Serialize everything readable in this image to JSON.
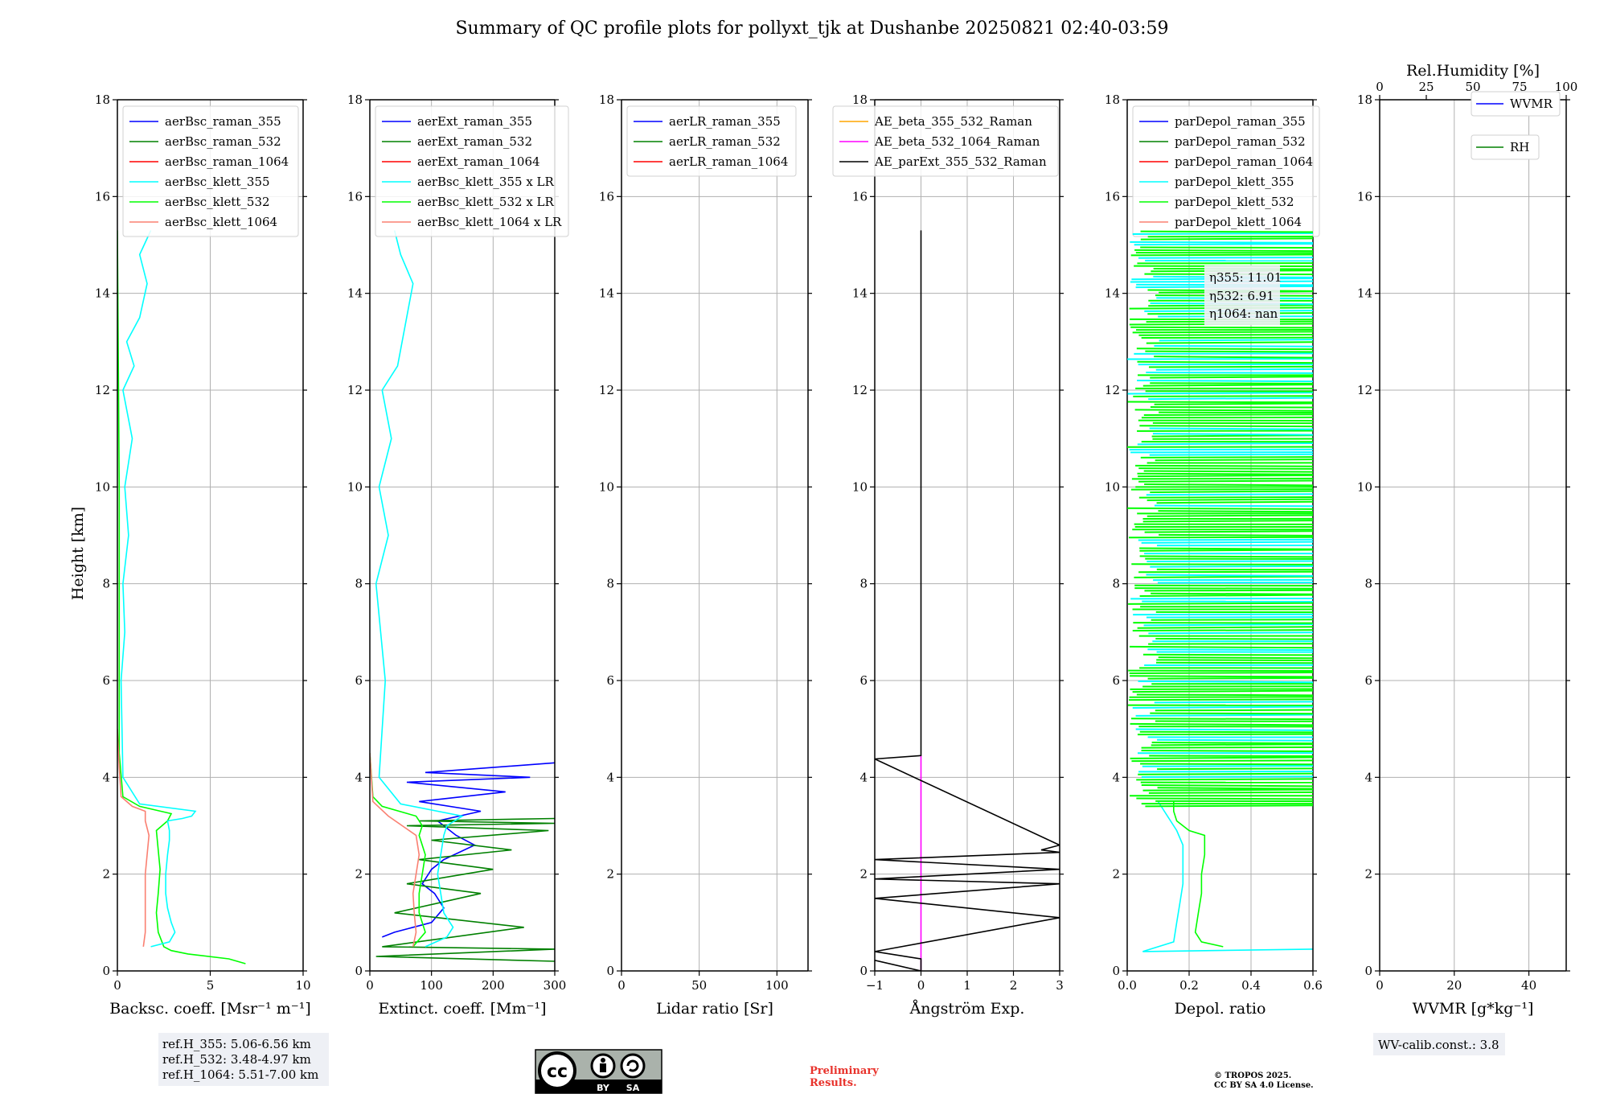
{
  "title": "Summary of QC profile plots for pollyxt_tjk at Dushanbe 20250821 02:40-03:59",
  "ylabel": "Height [km]",
  "yticks": [
    "0",
    "2",
    "4",
    "6",
    "8",
    "10",
    "12",
    "14",
    "16",
    "18"
  ],
  "colors": {
    "raman355": "#0000ff",
    "raman532": "#008000",
    "raman1064": "#ff0000",
    "klett355": "#00ffff",
    "klett532": "#00ff00",
    "klett1064": "#fa8072",
    "ae1": "#ffa500",
    "ae2": "#ff00ff",
    "ae3": "#000000"
  },
  "panels": [
    {
      "xlabel": "Backsc. coeff. [Msr⁻¹ m⁻¹]",
      "xticks": [
        "0",
        "5",
        "10"
      ],
      "legend": [
        "aerBsc_raman_355",
        "aerBsc_raman_532",
        "aerBsc_raman_1064",
        "aerBsc_klett_355",
        "aerBsc_klett_532",
        "aerBsc_klett_1064"
      ]
    },
    {
      "xlabel": "Extinct. coeff. [Mm⁻¹]",
      "xticks": [
        "0",
        "100",
        "200",
        "300"
      ],
      "legend": [
        "aerExt_raman_355",
        "aerExt_raman_532",
        "aerExt_raman_1064",
        "aerBsc_klett_355 x LR",
        "aerBsc_klett_532 x LR",
        "aerBsc_klett_1064 x LR"
      ]
    },
    {
      "xlabel": "Lidar ratio [Sr]",
      "xticks": [
        "0",
        "50",
        "100"
      ],
      "legend": [
        "aerLR_raman_355",
        "aerLR_raman_532",
        "aerLR_raman_1064"
      ]
    },
    {
      "xlabel": "Ångström Exp.",
      "xticks": [
        "−1",
        "0",
        "1",
        "2",
        "3"
      ],
      "legend": [
        "AE_beta_355_532_Raman",
        "AE_beta_532_1064_Raman",
        "AE_parExt_355_532_Raman"
      ]
    },
    {
      "xlabel": "Depol. ratio",
      "xticks": [
        "0.0",
        "0.2",
        "0.4",
        "0.6"
      ],
      "legend": [
        "parDepol_raman_355",
        "parDepol_raman_532",
        "parDepol_raman_1064",
        "parDepol_klett_355",
        "parDepol_klett_532",
        "parDepol_klett_1064"
      ]
    },
    {
      "xlabel": "WVMR [g*kg⁻¹]",
      "xticks": [
        "0",
        "20",
        "40"
      ],
      "top_label": "Rel.Humidity [%]",
      "top_ticks": [
        "0",
        "25",
        "50",
        "75",
        "100"
      ],
      "legend": [
        "WVMR",
        "RH"
      ]
    }
  ],
  "eta_box": [
    "η355: 11.01",
    "η532: 6.91",
    "η1064: nan"
  ],
  "ref_box": [
    "ref.H_355: 5.06-6.56 km",
    "ref.H_532: 3.48-4.97 km",
    "ref.H_1064: 5.51-7.00 km"
  ],
  "wv_calib": "WV-calib.const.: 3.8",
  "preliminary": [
    "Preliminary",
    "Results."
  ],
  "copyright": [
    "© TROPOS 2025.",
    "CC BY SA 4.0 License."
  ],
  "cc_badge": {
    "by": "BY",
    "sa": "SA"
  },
  "chart_data": [
    {
      "type": "line",
      "xlabel": "Backsc. coeff. [Msr⁻¹ m⁻¹]",
      "ylabel": "Height [km]",
      "xlim": [
        0,
        10
      ],
      "ylim": [
        0,
        18
      ],
      "series": [
        {
          "name": "aerBsc_klett_532",
          "x": [
            6.9,
            6.0,
            3.8,
            2.9,
            2.5,
            2.2,
            2.1,
            2.2,
            2.3,
            2.2,
            2.1,
            2.7,
            2.9,
            1.2,
            0.3,
            0.1,
            0.1,
            0.0
          ],
          "y": [
            0.15,
            0.25,
            0.35,
            0.42,
            0.5,
            0.8,
            1.2,
            1.6,
            2.1,
            2.5,
            2.9,
            3.1,
            3.25,
            3.4,
            3.6,
            4.5,
            10,
            15.3
          ]
        },
        {
          "name": "aerBsc_klett_355",
          "x": [
            1.8,
            2.8,
            3.1,
            2.9,
            2.7,
            2.6,
            2.6,
            2.7,
            2.8,
            2.8,
            2.7,
            3.5,
            4.0,
            4.2,
            1.2,
            0.3,
            0.2,
            0.4,
            0.3,
            0.6,
            0.4,
            0.8,
            0.3,
            0.9,
            0.5,
            1.2,
            1.6,
            1.2,
            1.8
          ],
          "y": [
            0.5,
            0.6,
            0.8,
            1.0,
            1.3,
            1.6,
            2.0,
            2.4,
            2.7,
            2.9,
            3.1,
            3.15,
            3.2,
            3.3,
            3.45,
            4.0,
            6,
            7,
            8,
            9,
            10,
            11,
            12,
            12.5,
            13,
            13.5,
            14.2,
            14.8,
            15.3
          ]
        },
        {
          "name": "aerBsc_klett_1064",
          "x": [
            1.4,
            1.5,
            1.5,
            1.5,
            1.5,
            1.6,
            1.7,
            1.5,
            1.5,
            0.8,
            0.2,
            0.1,
            0.0
          ],
          "y": [
            0.5,
            0.8,
            1.2,
            1.6,
            2.0,
            2.4,
            2.8,
            3.1,
            3.3,
            3.4,
            3.6,
            4.2,
            5.0
          ]
        }
      ]
    },
    {
      "type": "line",
      "xlabel": "Extinct. coeff. [Mm⁻¹]",
      "ylabel": "Height [km]",
      "xlim": [
        0,
        300
      ],
      "ylim": [
        0,
        18
      ],
      "series": [
        {
          "name": "aerExt_raman_355",
          "x": [
            20,
            40,
            70,
            100,
            120,
            105,
            85,
            100,
            120,
            170,
            140,
            110,
            180,
            80,
            220,
            60,
            260,
            90,
            300
          ],
          "y": [
            0.7,
            0.8,
            0.9,
            1.0,
            1.3,
            1.6,
            1.8,
            2.1,
            2.3,
            2.6,
            2.8,
            3.1,
            3.3,
            3.5,
            3.7,
            3.9,
            4.0,
            4.1,
            4.3
          ]
        },
        {
          "name": "aerExt_raman_532",
          "x": [
            300,
            10,
            300,
            20,
            250,
            40,
            180,
            60,
            200,
            80,
            230,
            100,
            290,
            60,
            300,
            80,
            300
          ],
          "y": [
            0.2,
            0.3,
            0.45,
            0.5,
            0.9,
            1.2,
            1.6,
            1.8,
            2.1,
            2.3,
            2.5,
            2.7,
            2.9,
            3.0,
            3.05,
            3.1,
            3.15
          ]
        },
        {
          "name": "aerBsc_klett_532 x LR",
          "x": [
            70,
            90,
            80,
            80,
            85,
            90,
            80,
            85,
            75,
            20,
            5,
            0
          ],
          "y": [
            0.5,
            0.8,
            1.2,
            1.6,
            2.0,
            2.4,
            2.8,
            3.0,
            3.2,
            3.4,
            3.6,
            4.5
          ]
        },
        {
          "name": "aerBsc_klett_355 x LR",
          "x": [
            90,
            125,
            135,
            120,
            115,
            110,
            115,
            120,
            125,
            150,
            50,
            15,
            25,
            10,
            30,
            15,
            35,
            20,
            45,
            70,
            50,
            40
          ],
          "y": [
            0.5,
            0.7,
            0.9,
            1.2,
            1.6,
            2.0,
            2.4,
            2.8,
            3.0,
            3.2,
            3.45,
            4.0,
            6,
            8,
            9,
            10,
            11,
            12,
            12.5,
            14.2,
            14.8,
            15.3
          ]
        },
        {
          "name": "aerBsc_klett_1064 x LR",
          "x": [
            70,
            75,
            72,
            70,
            75,
            80,
            75,
            30,
            5,
            0
          ],
          "y": [
            0.5,
            0.8,
            1.2,
            1.6,
            2.0,
            2.4,
            2.8,
            3.2,
            3.5,
            4.5
          ]
        }
      ]
    },
    {
      "type": "line",
      "xlabel": "Lidar ratio [Sr]",
      "ylabel": "Height [km]",
      "xlim": [
        0,
        120
      ],
      "ylim": [
        0,
        18
      ],
      "series": []
    },
    {
      "type": "line",
      "xlabel": "Ångström Exp.",
      "ylabel": "Height [km]",
      "xlim": [
        -1,
        3
      ],
      "ylim": [
        0,
        18
      ],
      "series": [
        {
          "name": "AE_beta_532_1064_Raman",
          "x": [
            0,
            0
          ],
          "y": [
            0,
            4.45
          ]
        },
        {
          "name": "AE_parExt_355_532_Raman",
          "x": [
            0,
            0,
            -1,
            3,
            2.6,
            3,
            -1,
            3,
            -1,
            3,
            -1,
            3,
            -1,
            0,
            0,
            -1
          ],
          "y": [
            15.3,
            4.45,
            4.38,
            2.6,
            2.5,
            2.45,
            2.3,
            2.1,
            1.9,
            1.8,
            1.5,
            1.1,
            0.4,
            0.25,
            0,
            0.22
          ]
        }
      ]
    },
    {
      "type": "line",
      "xlabel": "Depol. ratio",
      "ylabel": "Height [km]",
      "xlim": [
        0,
        0.6
      ],
      "ylim": [
        0,
        18
      ],
      "series": [
        {
          "name": "parDepol_klett_532",
          "x": [
            0.31,
            0.24,
            0.22,
            0.23,
            0.24,
            0.24,
            0.25,
            0.25,
            0.2,
            0.16,
            0.15,
            0.15
          ],
          "y": [
            0.5,
            0.6,
            0.8,
            1.2,
            1.6,
            2.0,
            2.4,
            2.8,
            2.9,
            3.1,
            3.3,
            3.5
          ]
        },
        {
          "name": "parDepol_klett_355",
          "x": [
            0.6,
            0.05,
            0.15,
            0.16,
            0.17,
            0.18,
            0.18,
            0.18,
            0.16,
            0.14,
            0.12,
            0.1
          ],
          "y": [
            0.45,
            0.4,
            0.6,
            1.0,
            1.4,
            1.8,
            2.2,
            2.6,
            2.9,
            3.1,
            3.3,
            3.5
          ]
        }
      ]
    },
    {
      "type": "line",
      "xlabel": "WVMR [g*kg⁻¹]",
      "ylabel": "Height [km]",
      "xlim": [
        0,
        50
      ],
      "ylim": [
        0,
        18
      ],
      "series": []
    }
  ]
}
